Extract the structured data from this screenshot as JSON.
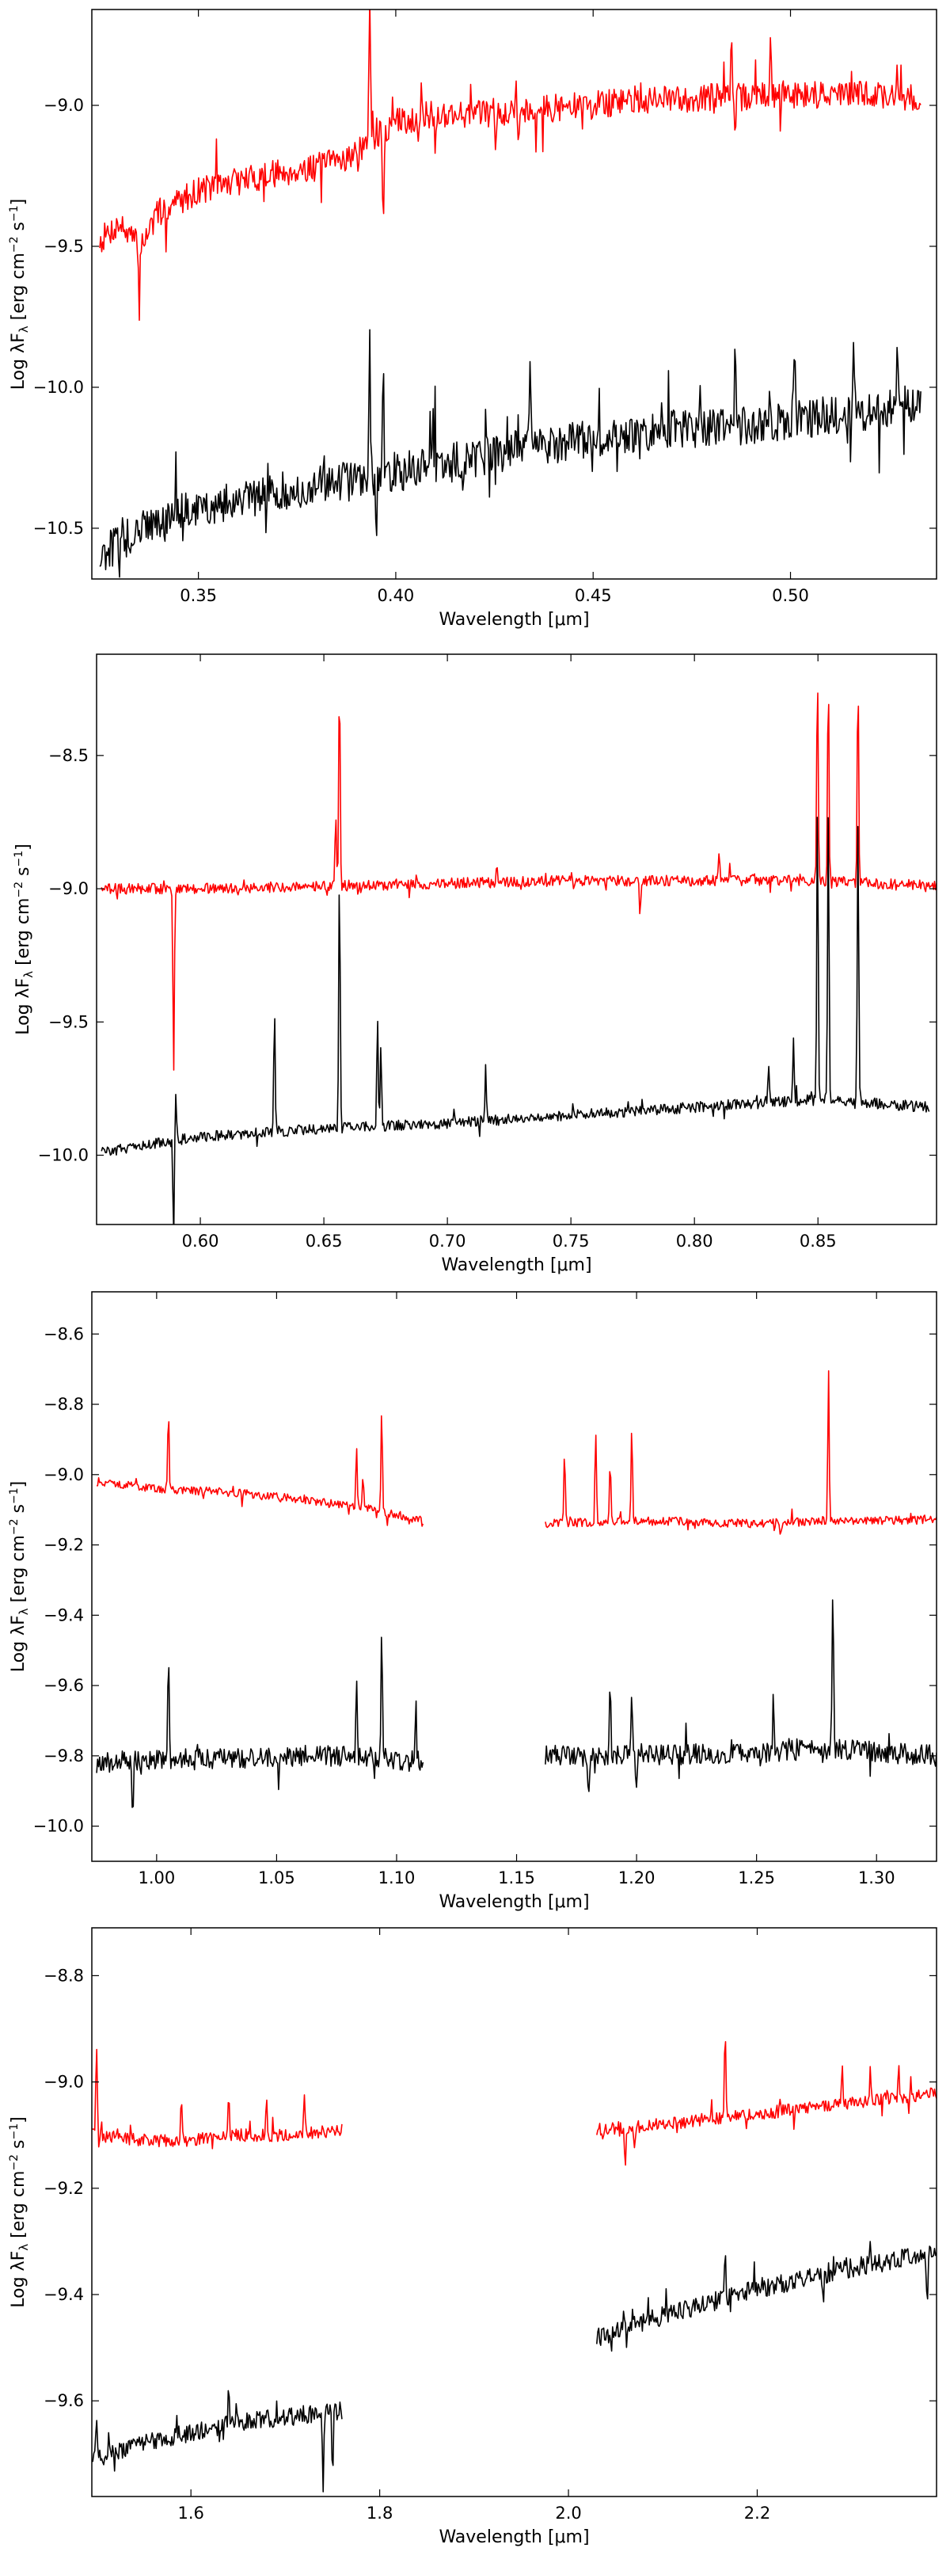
{
  "chart_data": [
    {
      "type": "line",
      "xlabel": "Wavelength [μm]",
      "ylabel": "Log λF",
      "ylabel_sub": "λ",
      "ylabel_units": " [erg cm",
      "ylabel_exp1": "−2",
      "ylabel_mid": " s",
      "ylabel_exp2": "−1",
      "ylabel_end": "]",
      "xlim": [
        0.323,
        0.537
      ],
      "ylim": [
        -10.68,
        -8.66
      ],
      "x_ticks": [
        0.35,
        0.4,
        0.45,
        0.5
      ],
      "x_tick_labels": [
        "0.35",
        "0.40",
        "0.45",
        "0.50"
      ],
      "y_ticks": [
        -10.5,
        -10.0,
        -9.5,
        -9.0
      ],
      "y_tick_labels": [
        "−10.5",
        "−10.0",
        "−9.5",
        "−9.0"
      ],
      "grid": false,
      "series": [
        {
          "color": "#ff0000",
          "segments": [
            {
              "x": [
                0.325,
                0.33,
                0.335,
                0.34,
                0.35,
                0.36,
                0.37,
                0.38,
                0.39,
                0.4,
                0.41,
                0.42,
                0.43,
                0.44,
                0.45,
                0.46,
                0.47,
                0.48,
                0.49,
                0.5,
                0.51,
                0.52,
                0.533
              ],
              "y": [
                -9.48,
                -9.42,
                -9.5,
                -9.38,
                -9.3,
                -9.27,
                -9.24,
                -9.22,
                -9.17,
                -9.06,
                -9.03,
                -9.03,
                -9.02,
                -9.01,
                -9.0,
                -8.98,
                -8.98,
                -8.97,
                -8.97,
                -8.96,
                -8.96,
                -8.96,
                -8.98
              ]
            }
          ],
          "noise": 0.05,
          "features": [
            [
              0.3934,
              0.55
            ],
            [
              0.3968,
              -0.35
            ],
            [
              0.335,
              -0.22
            ],
            [
              0.41,
              -0.15
            ],
            [
              0.485,
              0.25
            ],
            [
              0.486,
              -0.2
            ],
            [
              0.431,
              -0.12
            ],
            [
              0.495,
              0.2
            ],
            [
              0.527,
              0.15
            ]
          ]
        },
        {
          "color": "#000000",
          "segments": [
            {
              "x": [
                0.325,
                0.33,
                0.34,
                0.35,
                0.36,
                0.37,
                0.38,
                0.39,
                0.4,
                0.41,
                0.42,
                0.43,
                0.44,
                0.45,
                0.46,
                0.47,
                0.48,
                0.49,
                0.5,
                0.51,
                0.52,
                0.533
              ],
              "y": [
                -10.6,
                -10.55,
                -10.47,
                -10.43,
                -10.4,
                -10.37,
                -10.35,
                -10.33,
                -10.3,
                -10.28,
                -10.25,
                -10.22,
                -10.2,
                -10.18,
                -10.17,
                -10.15,
                -10.15,
                -10.13,
                -10.12,
                -10.1,
                -10.09,
                -10.05
              ]
            }
          ],
          "noise": 0.07,
          "features": [
            [
              0.3934,
              0.55
            ],
            [
              0.3968,
              0.4
            ],
            [
              0.41,
              0.25
            ],
            [
              0.434,
              0.3
            ],
            [
              0.486,
              0.35
            ],
            [
              0.501,
              0.3
            ],
            [
              0.516,
              0.25
            ],
            [
              0.527,
              0.25
            ],
            [
              0.395,
              -0.15
            ]
          ]
        }
      ]
    },
    {
      "type": "line",
      "xlabel": "Wavelength [μm]",
      "ylabel": "Log λF",
      "ylabel_sub": "λ",
      "ylabel_units": " [erg cm",
      "ylabel_exp1": "−2",
      "ylabel_mid": " s",
      "ylabel_exp2": "−1",
      "ylabel_end": "]",
      "xlim": [
        0.558,
        0.898
      ],
      "ylim": [
        -10.26,
        -8.12
      ],
      "x_ticks": [
        0.6,
        0.65,
        0.7,
        0.75,
        0.8,
        0.85
      ],
      "x_tick_labels": [
        "0.60",
        "0.65",
        "0.70",
        "0.75",
        "0.80",
        "0.85"
      ],
      "y_ticks": [
        -10.0,
        -9.5,
        -9.0,
        -8.5
      ],
      "y_tick_labels": [
        "−10.0",
        "−9.5",
        "−9.0",
        "−8.5"
      ],
      "grid": false,
      "series": [
        {
          "color": "#ff0000",
          "segments": [
            {
              "x": [
                0.56,
                0.6,
                0.65,
                0.7,
                0.75,
                0.8,
                0.85,
                0.898
              ],
              "y": [
                -9.0,
                -9.0,
                -8.99,
                -8.98,
                -8.97,
                -8.97,
                -8.97,
                -8.99
              ]
            }
          ],
          "noise": 0.02,
          "features": [
            [
              0.5892,
              -0.68
            ],
            [
              0.6563,
              0.8
            ],
            [
              0.6548,
              0.25
            ],
            [
              0.8498,
              0.8
            ],
            [
              0.8542,
              0.78
            ],
            [
              0.8662,
              0.77
            ],
            [
              0.778,
              -0.15
            ],
            [
              0.72,
              0.08
            ],
            [
              0.81,
              0.1
            ]
          ]
        },
        {
          "color": "#000000",
          "segments": [
            {
              "x": [
                0.56,
                0.6,
                0.65,
                0.7,
                0.75,
                0.8,
                0.85,
                0.895
              ],
              "y": [
                -9.99,
                -9.93,
                -9.9,
                -9.88,
                -9.85,
                -9.82,
                -9.79,
                -9.82
              ]
            }
          ],
          "noise": 0.02,
          "features": [
            [
              0.5892,
              -0.35
            ],
            [
              0.6563,
              0.95
            ],
            [
              0.63,
              0.45
            ],
            [
              0.6717,
              0.4
            ],
            [
              0.6731,
              0.3
            ],
            [
              0.7155,
              0.2
            ],
            [
              0.8498,
              1.1
            ],
            [
              0.8542,
              1.1
            ],
            [
              0.8662,
              1.05
            ],
            [
              0.84,
              0.25
            ],
            [
              0.83,
              0.15
            ],
            [
              0.59,
              0.2
            ]
          ]
        }
      ]
    },
    {
      "type": "line",
      "xlabel": "Wavelength [μm]",
      "ylabel": "Log λF",
      "ylabel_sub": "λ",
      "ylabel_units": " [erg cm",
      "ylabel_exp1": "−2",
      "ylabel_mid": " s",
      "ylabel_exp2": "−1",
      "ylabel_end": "]",
      "xlim": [
        0.973,
        1.325
      ],
      "ylim": [
        -10.1,
        -8.48
      ],
      "x_ticks": [
        1.0,
        1.05,
        1.1,
        1.15,
        1.2,
        1.25,
        1.3
      ],
      "x_tick_labels": [
        "1.00",
        "1.05",
        "1.10",
        "1.15",
        "1.20",
        "1.25",
        "1.30"
      ],
      "y_ticks": [
        -10.0,
        -9.8,
        -9.6,
        -9.4,
        -9.2,
        -9.0,
        -8.8,
        -8.6
      ],
      "y_tick_labels": [
        "−10.0",
        "−9.8",
        "−9.6",
        "−9.4",
        "−9.2",
        "−9.0",
        "−8.8",
        "−8.6"
      ],
      "grid": false,
      "series": [
        {
          "color": "#ff0000",
          "segments": [
            {
              "x": [
                0.975,
                1.0,
                1.03,
                1.06,
                1.09,
                1.111
              ],
              "y": [
                -9.02,
                -9.04,
                -9.05,
                -9.07,
                -9.1,
                -9.13
              ]
            },
            {
              "x": [
                1.162,
                1.2,
                1.25,
                1.28,
                1.325
              ],
              "y": [
                -9.14,
                -9.13,
                -9.14,
                -9.13,
                -9.13
              ]
            }
          ],
          "noise": 0.012,
          "features": [
            [
              1.0049,
              0.22
            ],
            [
              1.0833,
              0.18
            ],
            [
              1.0938,
              0.28
            ],
            [
              1.086,
              0.1
            ],
            [
              1.17,
              0.2
            ],
            [
              1.183,
              0.25
            ],
            [
              1.189,
              0.18
            ],
            [
              1.198,
              0.25
            ],
            [
              1.28,
              0.42
            ],
            [
              1.26,
              -0.04
            ]
          ]
        },
        {
          "color": "#000000",
          "segments": [
            {
              "x": [
                0.975,
                1.0,
                1.03,
                1.06,
                1.09,
                1.111
              ],
              "y": [
                -9.82,
                -9.81,
                -9.81,
                -9.8,
                -9.8,
                -9.82
              ]
            },
            {
              "x": [
                1.162,
                1.2,
                1.25,
                1.28,
                1.325
              ],
              "y": [
                -9.8,
                -9.8,
                -9.79,
                -9.78,
                -9.8
              ]
            }
          ],
          "noise": 0.03,
          "features": [
            [
              1.0049,
              0.28
            ],
            [
              1.0938,
              0.35
            ],
            [
              1.0833,
              0.2
            ],
            [
              1.108,
              0.18
            ],
            [
              1.189,
              0.22
            ],
            [
              1.198,
              0.2
            ],
            [
              1.2818,
              0.47
            ],
            [
              1.257,
              0.15
            ],
            [
              1.2,
              -0.12
            ],
            [
              1.18,
              -0.15
            ],
            [
              0.99,
              -0.15
            ]
          ]
        }
      ]
    },
    {
      "type": "line",
      "xlabel": "Wavelength [μm]",
      "ylabel": "Log λF",
      "ylabel_sub": "λ",
      "ylabel_units": " [erg cm",
      "ylabel_exp1": "−2",
      "ylabel_mid": " s",
      "ylabel_exp2": "−1",
      "ylabel_end": "]",
      "xlim": [
        1.495,
        2.39
      ],
      "ylim": [
        -9.78,
        -8.71
      ],
      "x_ticks": [
        1.6,
        1.8,
        2.0,
        2.2
      ],
      "x_tick_labels": [
        "1.6",
        "1.8",
        "2.0",
        "2.2"
      ],
      "y_ticks": [
        -9.6,
        -9.4,
        -9.2,
        -9.0,
        -8.8
      ],
      "y_tick_labels": [
        "−9.6",
        "−9.4",
        "−9.2",
        "−9.0",
        "−8.8"
      ],
      "grid": false,
      "series": [
        {
          "color": "#ff0000",
          "segments": [
            {
              "x": [
                1.495,
                1.55,
                1.6,
                1.65,
                1.7,
                1.76
              ],
              "y": [
                -9.1,
                -9.11,
                -9.11,
                -9.1,
                -9.1,
                -9.09
              ]
            },
            {
              "x": [
                2.03,
                2.1,
                2.2,
                2.3,
                2.39
              ],
              "y": [
                -9.09,
                -9.08,
                -9.06,
                -9.04,
                -9.02
              ]
            }
          ],
          "noise": 0.012,
          "features": [
            [
              1.5,
              0.19
            ],
            [
              1.59,
              0.08
            ],
            [
              1.64,
              0.07
            ],
            [
              1.68,
              0.07
            ],
            [
              1.72,
              0.07
            ],
            [
              2.166,
              0.18
            ],
            [
              2.06,
              -0.07
            ],
            [
              2.07,
              -0.05
            ],
            [
              2.29,
              0.08
            ],
            [
              2.32,
              0.06
            ],
            [
              2.35,
              0.05
            ]
          ]
        },
        {
          "color": "#000000",
          "segments": [
            {
              "x": [
                1.495,
                1.55,
                1.6,
                1.65,
                1.7,
                1.76
              ],
              "y": [
                -9.71,
                -9.68,
                -9.66,
                -9.64,
                -9.63,
                -9.62
              ]
            },
            {
              "x": [
                2.03,
                2.1,
                2.2,
                2.3,
                2.39
              ],
              "y": [
                -9.48,
                -9.44,
                -9.39,
                -9.35,
                -9.32
              ]
            }
          ],
          "noise": 0.018,
          "features": [
            [
              1.64,
              0.08
            ],
            [
              1.74,
              -0.15
            ],
            [
              1.75,
              -0.12
            ],
            [
              2.166,
              0.1
            ],
            [
              2.27,
              -0.07
            ],
            [
              2.38,
              -0.1
            ],
            [
              1.5,
              0.06
            ]
          ]
        }
      ]
    }
  ]
}
